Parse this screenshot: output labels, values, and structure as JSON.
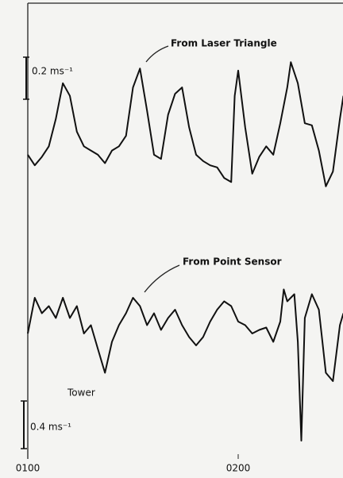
{
  "chart_data": [
    {
      "type": "line",
      "annotation": "From Laser Triangle",
      "scale_bar": {
        "value": 0.2,
        "label": "0.2 ms⁻¹"
      },
      "xlim": [
        60,
        150
      ],
      "ylim": [
        0,
        1
      ],
      "x": [
        60,
        62,
        64,
        66,
        68,
        70,
        72,
        74,
        76,
        78,
        80,
        82,
        84,
        86,
        88,
        90,
        92,
        94,
        96,
        98,
        100,
        102,
        104,
        106,
        108,
        110,
        112,
        114,
        116,
        118,
        119,
        120,
        122,
        124,
        126,
        128,
        130,
        132,
        134,
        135,
        137,
        139,
        141,
        143,
        145,
        147,
        149,
        150
      ],
      "values": [
        0.34,
        0.29,
        0.33,
        0.38,
        0.51,
        0.68,
        0.62,
        0.45,
        0.38,
        0.36,
        0.34,
        0.3,
        0.36,
        0.38,
        0.43,
        0.66,
        0.75,
        0.55,
        0.34,
        0.32,
        0.53,
        0.63,
        0.66,
        0.47,
        0.34,
        0.31,
        0.29,
        0.28,
        0.23,
        0.21,
        0.62,
        0.74,
        0.47,
        0.25,
        0.33,
        0.38,
        0.34,
        0.49,
        0.66,
        0.78,
        0.68,
        0.49,
        0.48,
        0.36,
        0.19,
        0.26,
        0.51,
        0.62
      ]
    },
    {
      "type": "line",
      "annotation": "From Point Sensor",
      "label": "Tower",
      "scale_bar": {
        "value": 0.4,
        "label": "0.4 ms⁻¹"
      },
      "xlim": [
        60,
        150
      ],
      "ylim": [
        0,
        2
      ],
      "xticks": [
        {
          "value": 60,
          "label": "0100"
        },
        {
          "value": 120,
          "label": "0200"
        }
      ],
      "x": [
        60,
        62,
        64,
        66,
        68,
        70,
        72,
        74,
        76,
        78,
        80,
        82,
        84,
        86,
        88,
        90,
        92,
        94,
        96,
        98,
        100,
        102,
        104,
        106,
        108,
        110,
        112,
        114,
        116,
        118,
        120,
        122,
        124,
        126,
        128,
        130,
        132,
        133,
        134,
        136,
        137,
        138,
        139,
        141,
        143,
        145,
        147,
        149,
        150
      ],
      "values": [
        1.2,
        1.5,
        1.37,
        1.43,
        1.33,
        1.5,
        1.33,
        1.43,
        1.2,
        1.27,
        1.07,
        0.87,
        1.13,
        1.27,
        1.37,
        1.5,
        1.43,
        1.27,
        1.37,
        1.23,
        1.33,
        1.4,
        1.27,
        1.17,
        1.1,
        1.17,
        1.3,
        1.4,
        1.47,
        1.43,
        1.3,
        1.27,
        1.2,
        1.23,
        1.25,
        1.13,
        1.3,
        1.57,
        1.47,
        1.53,
        1.13,
        0.3,
        1.33,
        1.53,
        1.4,
        0.87,
        0.8,
        1.27,
        1.37
      ]
    }
  ]
}
